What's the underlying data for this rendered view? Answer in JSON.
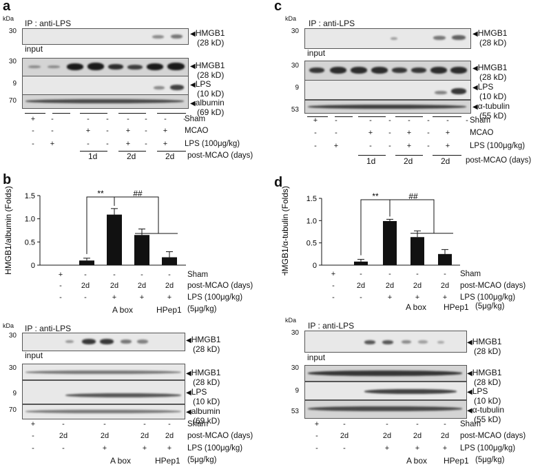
{
  "panels": {
    "a": {
      "letter": "a",
      "kda": "kDa",
      "ip_title": "IP : anti-LPS",
      "input_label": "input",
      "markers": [
        "30",
        "30",
        "9",
        "70"
      ],
      "labels": [
        {
          "name": "HMGB1",
          "size": "(28 kD)"
        },
        {
          "name": "HMGB1",
          "size": "(28 kD)"
        },
        {
          "name": "LPS",
          "size": "(10 kD)"
        },
        {
          "name": "albumin",
          "size": "(69 kD)"
        }
      ],
      "conditions": [
        {
          "label": "Sham",
          "vals": [
            "+",
            "-",
            "-",
            "-",
            "-",
            "-",
            "-",
            "-"
          ]
        },
        {
          "label": "MCAO",
          "vals": [
            "-",
            "-",
            "+",
            "-",
            "+",
            "-",
            "+",
            ""
          ]
        },
        {
          "label": "LPS (100μg/kg)",
          "vals": [
            "-",
            "+",
            "-",
            "-",
            "+",
            "-",
            "+",
            ""
          ]
        }
      ],
      "days_label": "post-MCAO (days)",
      "days": [
        "1d",
        "2d",
        "2d"
      ]
    },
    "c": {
      "letter": "c",
      "kda": "kDa",
      "ip_title": "IP : anti-LPS",
      "input_label": "input",
      "markers": [
        "30",
        "30",
        "9",
        "53"
      ],
      "labels": [
        {
          "name": "HMGB1",
          "size": "(28 kD)"
        },
        {
          "name": "HMGB1",
          "size": "(28 kD)"
        },
        {
          "name": "LPS",
          "size": "(10 kD)"
        },
        {
          "name": "α-tubulin",
          "size": "(55 kD)"
        }
      ],
      "conditions": [
        {
          "label": "Sham",
          "vals": [
            "+",
            "-",
            "-",
            "-",
            "-",
            "-",
            "-",
            "-"
          ]
        },
        {
          "label": "MCAO",
          "vals": [
            "-",
            "-",
            "+",
            "-",
            "+",
            "-",
            "+",
            ""
          ]
        },
        {
          "label": "LPS (100μg/kg)",
          "vals": [
            "-",
            "+",
            "-",
            "-",
            "+",
            "-",
            "+",
            ""
          ]
        }
      ],
      "days_label": "post-MCAO  (days)",
      "days": [
        "1d",
        "2d",
        "2d"
      ]
    },
    "b": {
      "letter": "b",
      "conditions": [
        {
          "label": "Sham",
          "vals": [
            "+",
            "-",
            "-",
            "-",
            "-"
          ]
        },
        {
          "label": "post-MCAO (days)",
          "vals": [
            "-",
            "2d",
            "2d",
            "2d",
            "2d"
          ]
        },
        {
          "label": "LPS (100μg/kg)",
          "vals": [
            "-",
            "-",
            "+",
            "+",
            "+"
          ]
        }
      ],
      "extra": [
        "A box",
        "HPep1",
        "(5μg/kg)"
      ],
      "blot": {
        "kda": "kDa",
        "ip_title": "IP : anti-LPS",
        "input_label": "input",
        "markers": [
          "30",
          "30",
          "9",
          "70"
        ],
        "labels": [
          {
            "name": "HMGB1",
            "size": "(28 kD)"
          },
          {
            "name": "HMGB1",
            "size": "(28 kD)"
          },
          {
            "name": "LPS",
            "size": "(10 kD)"
          },
          {
            "name": "albumin",
            "size": "(69 kD)"
          }
        ],
        "conditions": [
          {
            "label": "Sham",
            "vals": [
              "+",
              "-",
              "-",
              "-",
              "-"
            ]
          },
          {
            "label": "post-MCAO  (days)",
            "vals": [
              "-",
              "2d",
              "2d",
              "2d",
              "2d"
            ]
          },
          {
            "label": "LPS (100μg/kg)",
            "vals": [
              "-",
              "-",
              "+",
              "+",
              "+"
            ]
          }
        ],
        "extra": [
          "A box",
          "HPep1",
          "(5μg/kg)"
        ]
      }
    },
    "d": {
      "letter": "d",
      "conditions": [
        {
          "label": "Sham",
          "vals": [
            "+",
            "-",
            "-",
            "-",
            "-"
          ]
        },
        {
          "label": "post-MCAO  (days)",
          "vals": [
            "-",
            "2d",
            "2d",
            "2d",
            "2d"
          ]
        },
        {
          "label": "LPS (100μg/kg)",
          "vals": [
            "-",
            "-",
            "+",
            "+",
            "+"
          ]
        }
      ],
      "extra": [
        "A box",
        "HPep1",
        "(5μg/kg)"
      ],
      "blot": {
        "kda": "kDa",
        "ip_title": "IP : anti-LPS",
        "input_label": "input",
        "markers": [
          "30",
          "30",
          "9",
          "53"
        ],
        "labels": [
          {
            "name": "HMGB1",
            "size": "(28 kD)"
          },
          {
            "name": "HMGB1",
            "size": "(28 kD)"
          },
          {
            "name": "LPS",
            "size": "(10 kD)"
          },
          {
            "name": "α-tubulin",
            "size": "(55 kD)"
          }
        ],
        "conditions": [
          {
            "label": "Sham",
            "vals": [
              "+",
              "-",
              "-",
              "-",
              "-"
            ]
          },
          {
            "label": "post-MCAO  (days)",
            "vals": [
              "-",
              "2d",
              "2d",
              "2d",
              "2d"
            ]
          },
          {
            "label": "LPS (100μg/kg)",
            "vals": [
              "-",
              "-",
              "+",
              "+",
              "+"
            ]
          }
        ],
        "extra": [
          "A box",
          "HPep1",
          "(5μg/kg)"
        ]
      }
    }
  },
  "chart_data": [
    {
      "panel": "b",
      "type": "bar",
      "ylabel": "HMGB1/albumin (Folds)",
      "ylim": [
        0,
        1.5
      ],
      "yticks": [
        "0",
        "0.5",
        "1.0",
        "1.5"
      ],
      "categories": [
        "Sham",
        "2d",
        "2d + LPS",
        "2d + LPS + A box",
        "2d + LPS + HPep1"
      ],
      "values": [
        0,
        0.1,
        1.09,
        0.65,
        0.17
      ],
      "errors": [
        0,
        0.05,
        0.13,
        0.13,
        0.12
      ],
      "annotations": [
        "**",
        "##"
      ]
    },
    {
      "panel": "d",
      "type": "bar",
      "ylabel": "HMGB1/α-tubulin (Folds)",
      "ylim": [
        0,
        1.5
      ],
      "yticks": [
        "0",
        "0.5",
        "1.0",
        "1.5"
      ],
      "categories": [
        "Sham",
        "2d",
        "2d + LPS",
        "2d + LPS + A box",
        "2d + LPS + HPep1"
      ],
      "values": [
        0,
        0.08,
        0.99,
        0.63,
        0.25
      ],
      "errors": [
        0,
        0.05,
        0.04,
        0.14,
        0.1
      ],
      "annotations": [
        "**",
        "##"
      ]
    }
  ]
}
